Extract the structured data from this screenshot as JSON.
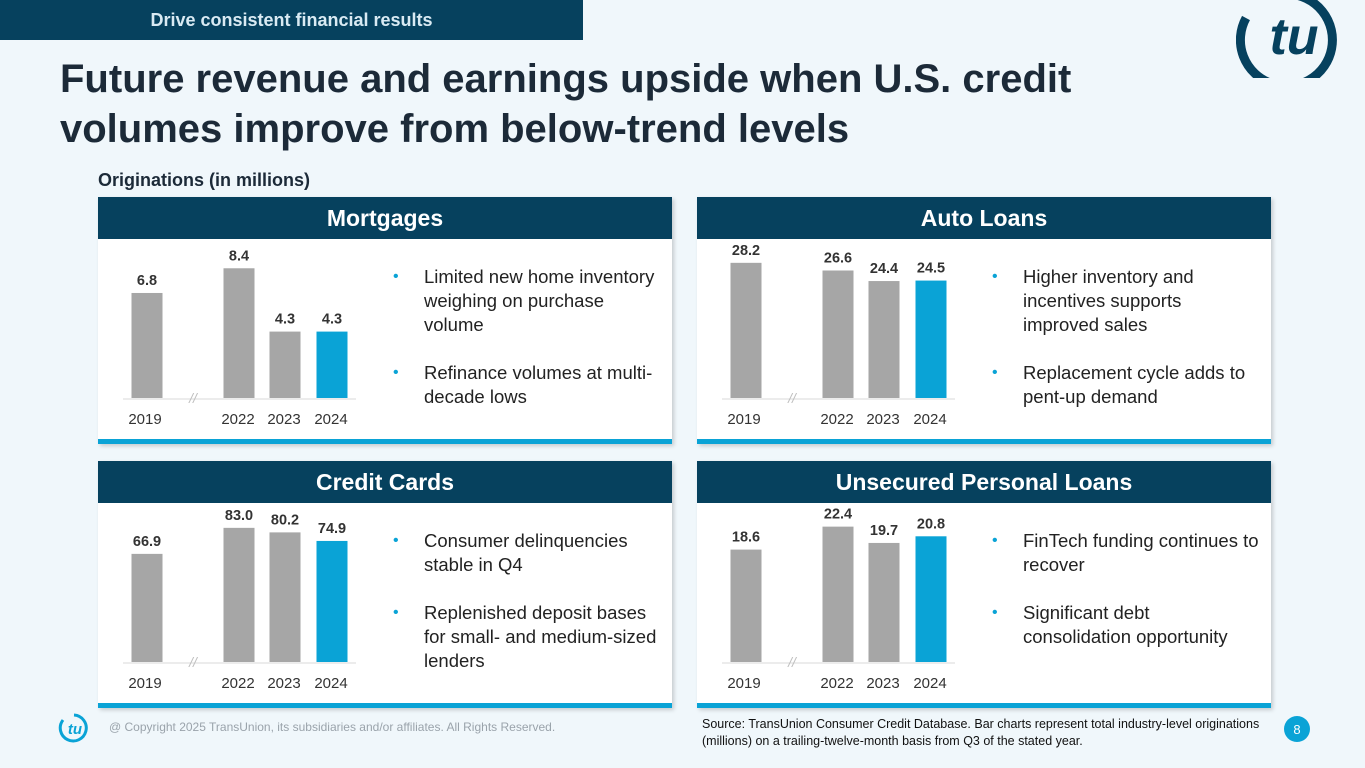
{
  "banner": "Drive consistent financial results",
  "title": "Future revenue and earnings upside when U.S. credit volumes improve from below-trend levels",
  "subtitle": "Originations (in millions)",
  "colors": {
    "navy": "#06415e",
    "accent": "#0aa3d6",
    "bar_grey": "#a6a6a6"
  },
  "panels": [
    {
      "header": "Mortgages",
      "bullets": [
        "Limited new home inventory weighing on purchase volume",
        "Refinance volumes at multi-decade lows"
      ]
    },
    {
      "header": "Auto Loans",
      "bullets": [
        "Higher inventory and incentives supports improved sales",
        "Replacement cycle adds to pent-up demand"
      ]
    },
    {
      "header": "Credit Cards",
      "bullets": [
        "Consumer delinquencies stable in Q4",
        "Replenished deposit bases for small- and medium-sized lenders"
      ]
    },
    {
      "header": "Unsecured Personal Loans",
      "bullets": [
        "FinTech funding continues to recover",
        "Significant debt consolidation opportunity"
      ]
    }
  ],
  "chart_data": [
    {
      "type": "bar",
      "title": "Mortgages",
      "categories": [
        "2019",
        "2022",
        "2023",
        "2024"
      ],
      "values": [
        6.8,
        8.4,
        4.3,
        4.3
      ],
      "labels": [
        "6.8",
        "8.4",
        "4.3",
        "4.3"
      ],
      "ylim": [
        0,
        9
      ],
      "highlight_index": 3,
      "axis_break": "//"
    },
    {
      "type": "bar",
      "title": "Auto Loans",
      "categories": [
        "2019",
        "2022",
        "2023",
        "2024"
      ],
      "values": [
        28.2,
        26.6,
        24.4,
        24.5
      ],
      "labels": [
        "28.2",
        "26.6",
        "24.4",
        "24.5"
      ],
      "ylim": [
        0,
        29
      ],
      "highlight_index": 3,
      "axis_break": "//"
    },
    {
      "type": "bar",
      "title": "Credit Cards",
      "categories": [
        "2019",
        "2022",
        "2023",
        "2024"
      ],
      "values": [
        66.9,
        83.0,
        80.2,
        74.9
      ],
      "labels": [
        "66.9",
        "83.0",
        "80.2",
        "74.9"
      ],
      "ylim": [
        0,
        86
      ],
      "highlight_index": 3,
      "axis_break": "//"
    },
    {
      "type": "bar",
      "title": "Unsecured Personal Loans",
      "categories": [
        "2019",
        "2022",
        "2023",
        "2024"
      ],
      "values": [
        18.6,
        22.4,
        19.7,
        20.8
      ],
      "labels": [
        "18.6",
        "22.4",
        "19.7",
        "20.8"
      ],
      "ylim": [
        0,
        23
      ],
      "highlight_index": 3,
      "axis_break": "//"
    }
  ],
  "footer": {
    "copyright": "@ Copyright 2025 TransUnion, its subsidiaries and/or affiliates.  All Rights Reserved.",
    "source": "Source: TransUnion Consumer Credit Database. Bar charts represent total industry-level originations (millions) on a trailing-twelve-month basis from Q3 of the stated year.",
    "page_number": "8",
    "logo_text": "tu"
  }
}
